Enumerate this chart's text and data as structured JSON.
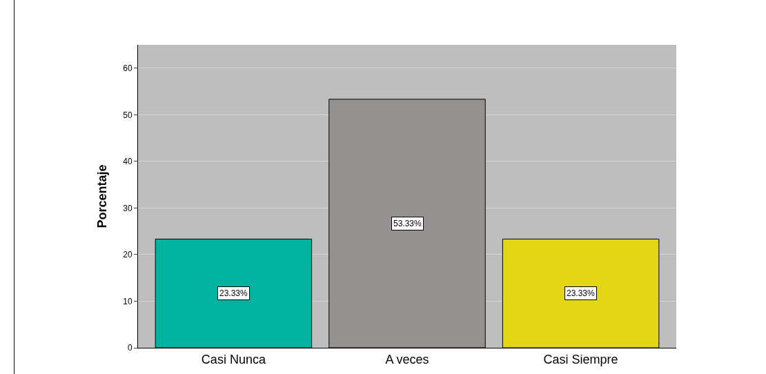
{
  "chart_data": {
    "type": "bar",
    "ylabel": "Porcentaje",
    "categories": [
      "Casi Nunca",
      "A veces",
      "Casi Siempre"
    ],
    "values": [
      23.33,
      53.33,
      23.33
    ],
    "colors": [
      "#00b3a0",
      "#959190",
      "#e3d614"
    ],
    "value_labels": [
      "23.33%",
      "53.33%",
      "23.33%"
    ],
    "ylim": [
      0,
      65
    ],
    "yticks": [
      0,
      10,
      20,
      30,
      40,
      50,
      60
    ],
    "grid": "y"
  }
}
